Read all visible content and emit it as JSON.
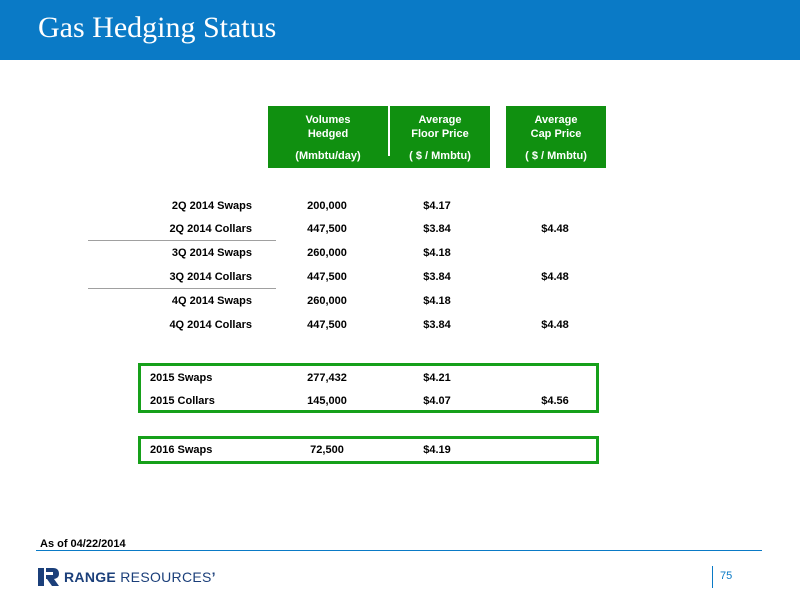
{
  "title": "Gas Hedging Status",
  "columns": [
    {
      "header_line1": "Volumes",
      "header_line2": "Hedged",
      "units": "(Mmbtu/day)"
    },
    {
      "header_line1": "Average",
      "header_line2": "Floor Price",
      "units": "( $ / Mmbtu)"
    },
    {
      "header_line1": "Average",
      "header_line2": "Cap Price",
      "units": "( $ / Mmbtu)"
    }
  ],
  "rows": [
    {
      "label": "2Q 2014 Swaps",
      "volume": "200,000",
      "floor": "$4.17",
      "cap": ""
    },
    {
      "label": "2Q 2014 Collars",
      "volume": "447,500",
      "floor": "$3.84",
      "cap": "$4.48"
    },
    {
      "label": "3Q 2014 Swaps",
      "volume": "260,000",
      "floor": "$4.18",
      "cap": ""
    },
    {
      "label": "3Q 2014 Collars",
      "volume": "447,500",
      "floor": "$3.84",
      "cap": "$4.48"
    },
    {
      "label": "4Q 2014 Swaps",
      "volume": "260,000",
      "floor": "$4.18",
      "cap": ""
    },
    {
      "label": "4Q 2014 Collars",
      "volume": "447,500",
      "floor": "$3.84",
      "cap": "$4.48"
    },
    {
      "label": "2015 Swaps",
      "volume": "277,432",
      "floor": "$4.21",
      "cap": ""
    },
    {
      "label": "2015 Collars",
      "volume": "145,000",
      "floor": "$4.07",
      "cap": "$4.56"
    },
    {
      "label": "2016 Swaps",
      "volume": "72,500",
      "floor": "$4.19",
      "cap": ""
    }
  ],
  "as_of": "As of 04/22/2014",
  "logo": {
    "bold": "RANGE",
    "light": "RESOURCES",
    "mark": "’"
  },
  "page_number": "75",
  "colors": {
    "title_bar": "#0a7ac6",
    "header_green": "#109010",
    "box_green": "#16a01a",
    "logo_navy": "#1b3f7a"
  }
}
